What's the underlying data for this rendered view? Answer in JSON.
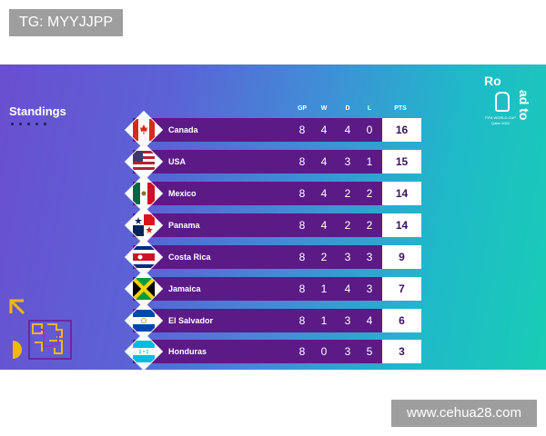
{
  "watermarks": {
    "top": "TG: MYYJJPP",
    "bottom": "www.cehua28.com"
  },
  "standings": {
    "title": "Standings",
    "headers": {
      "gp": "GP",
      "w": "W",
      "d": "D",
      "l": "L",
      "pts": "PTS"
    },
    "rows": [
      {
        "team": "Canada",
        "gp": "8",
        "w": "4",
        "d": "4",
        "l": "0",
        "pts": "16",
        "flag": "canada-flag-icon"
      },
      {
        "team": "USA",
        "gp": "8",
        "w": "4",
        "d": "3",
        "l": "1",
        "pts": "15",
        "flag": "usa-flag-icon"
      },
      {
        "team": "Mexico",
        "gp": "8",
        "w": "4",
        "d": "2",
        "l": "2",
        "pts": "14",
        "flag": "mexico-flag-icon"
      },
      {
        "team": "Panama",
        "gp": "8",
        "w": "4",
        "d": "2",
        "l": "2",
        "pts": "14",
        "flag": "panama-flag-icon"
      },
      {
        "team": "Costa Rica",
        "gp": "8",
        "w": "2",
        "d": "3",
        "l": "3",
        "pts": "9",
        "flag": "costa-rica-flag-icon"
      },
      {
        "team": "Jamaica",
        "gp": "8",
        "w": "1",
        "d": "4",
        "l": "3",
        "pts": "7",
        "flag": "jamaica-flag-icon"
      },
      {
        "team": "El Salvador",
        "gp": "8",
        "w": "1",
        "d": "3",
        "l": "4",
        "pts": "6",
        "flag": "el-salvador-flag-icon"
      },
      {
        "team": "Honduras",
        "gp": "8",
        "w": "0",
        "d": "3",
        "l": "5",
        "pts": "3",
        "flag": "honduras-flag-icon"
      }
    ]
  },
  "logo": {
    "line1": "Ro",
    "line2": "ad to",
    "caption1": "FIFA WORLD CUP",
    "caption2": "Qatar 2022"
  },
  "colors": {
    "row_bar": "#5b1a86",
    "pts_text": "#3c1060",
    "bg_left": "#6a4fd0",
    "bg_right": "#18cdb5"
  }
}
